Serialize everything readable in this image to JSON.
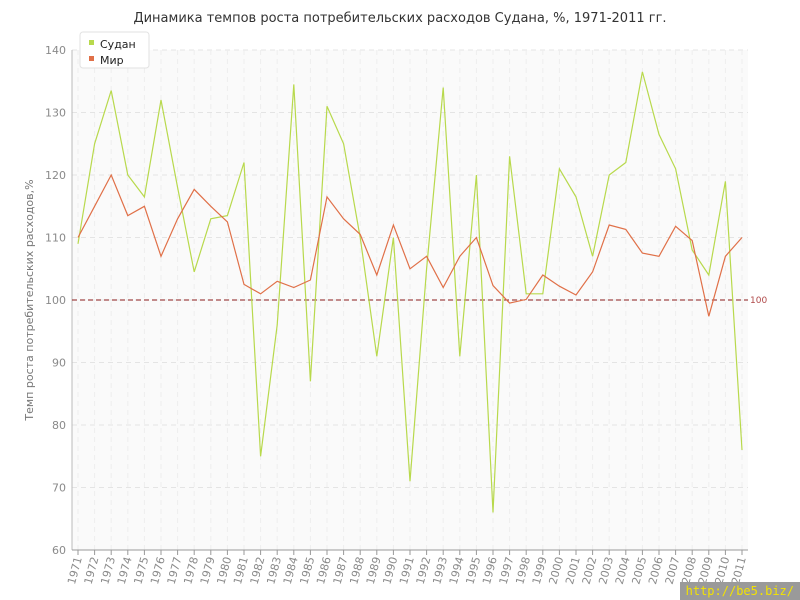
{
  "chart_data": {
    "type": "line",
    "title": "Динамика темпов роста потребительских расходов Судана, %, 1971-2011 гг.",
    "xlabel": "",
    "ylabel": "Темп роста потребительских расходов,%",
    "ylim": [
      60,
      140
    ],
    "yticks": [
      60,
      70,
      80,
      90,
      100,
      110,
      120,
      130,
      140
    ],
    "grid": true,
    "legend_position": "top-left",
    "reference_line": {
      "value": 100,
      "label": "100",
      "color": "#8b1a1a"
    },
    "x": [
      "1971",
      "1972",
      "1973",
      "1974",
      "1975",
      "1976",
      "1977",
      "1978",
      "1979",
      "1980",
      "1981",
      "1982",
      "1983",
      "1984",
      "1985",
      "1986",
      "1987",
      "1988",
      "1989",
      "1990",
      "1991",
      "1992",
      "1993",
      "1994",
      "1995",
      "1996",
      "1997",
      "1998",
      "1999",
      "2000",
      "2001",
      "2002",
      "2003",
      "2004",
      "2005",
      "2006",
      "2007",
      "2008",
      "2009",
      "2010",
      "2011"
    ],
    "series": [
      {
        "name": "Судан",
        "color": "#b8d94c",
        "values": [
          109,
          125,
          133.5,
          120,
          116.5,
          132,
          118,
          104.5,
          113,
          113.5,
          122,
          75,
          96,
          134.5,
          87,
          131,
          125,
          110,
          91,
          110,
          71,
          105,
          134,
          91,
          120,
          66,
          123,
          101,
          101,
          121,
          116.5,
          107,
          120,
          122,
          136.5,
          126.5,
          121,
          108,
          104,
          119,
          76
        ]
      },
      {
        "name": "Мир",
        "color": "#e07048",
        "values": [
          110,
          115,
          120,
          113.5,
          115,
          107,
          113,
          117.7,
          115,
          112.5,
          102.5,
          101,
          103,
          102,
          103.2,
          116.5,
          113,
          110.5,
          104,
          112,
          105,
          107,
          102,
          107,
          110,
          102.3,
          99.5,
          100.1,
          104,
          102.2,
          100.8,
          104.5,
          112,
          111.3,
          107.5,
          107,
          111.8,
          109.5,
          97.4,
          107,
          110
        ]
      }
    ]
  },
  "watermark": "http://be5.biz/"
}
